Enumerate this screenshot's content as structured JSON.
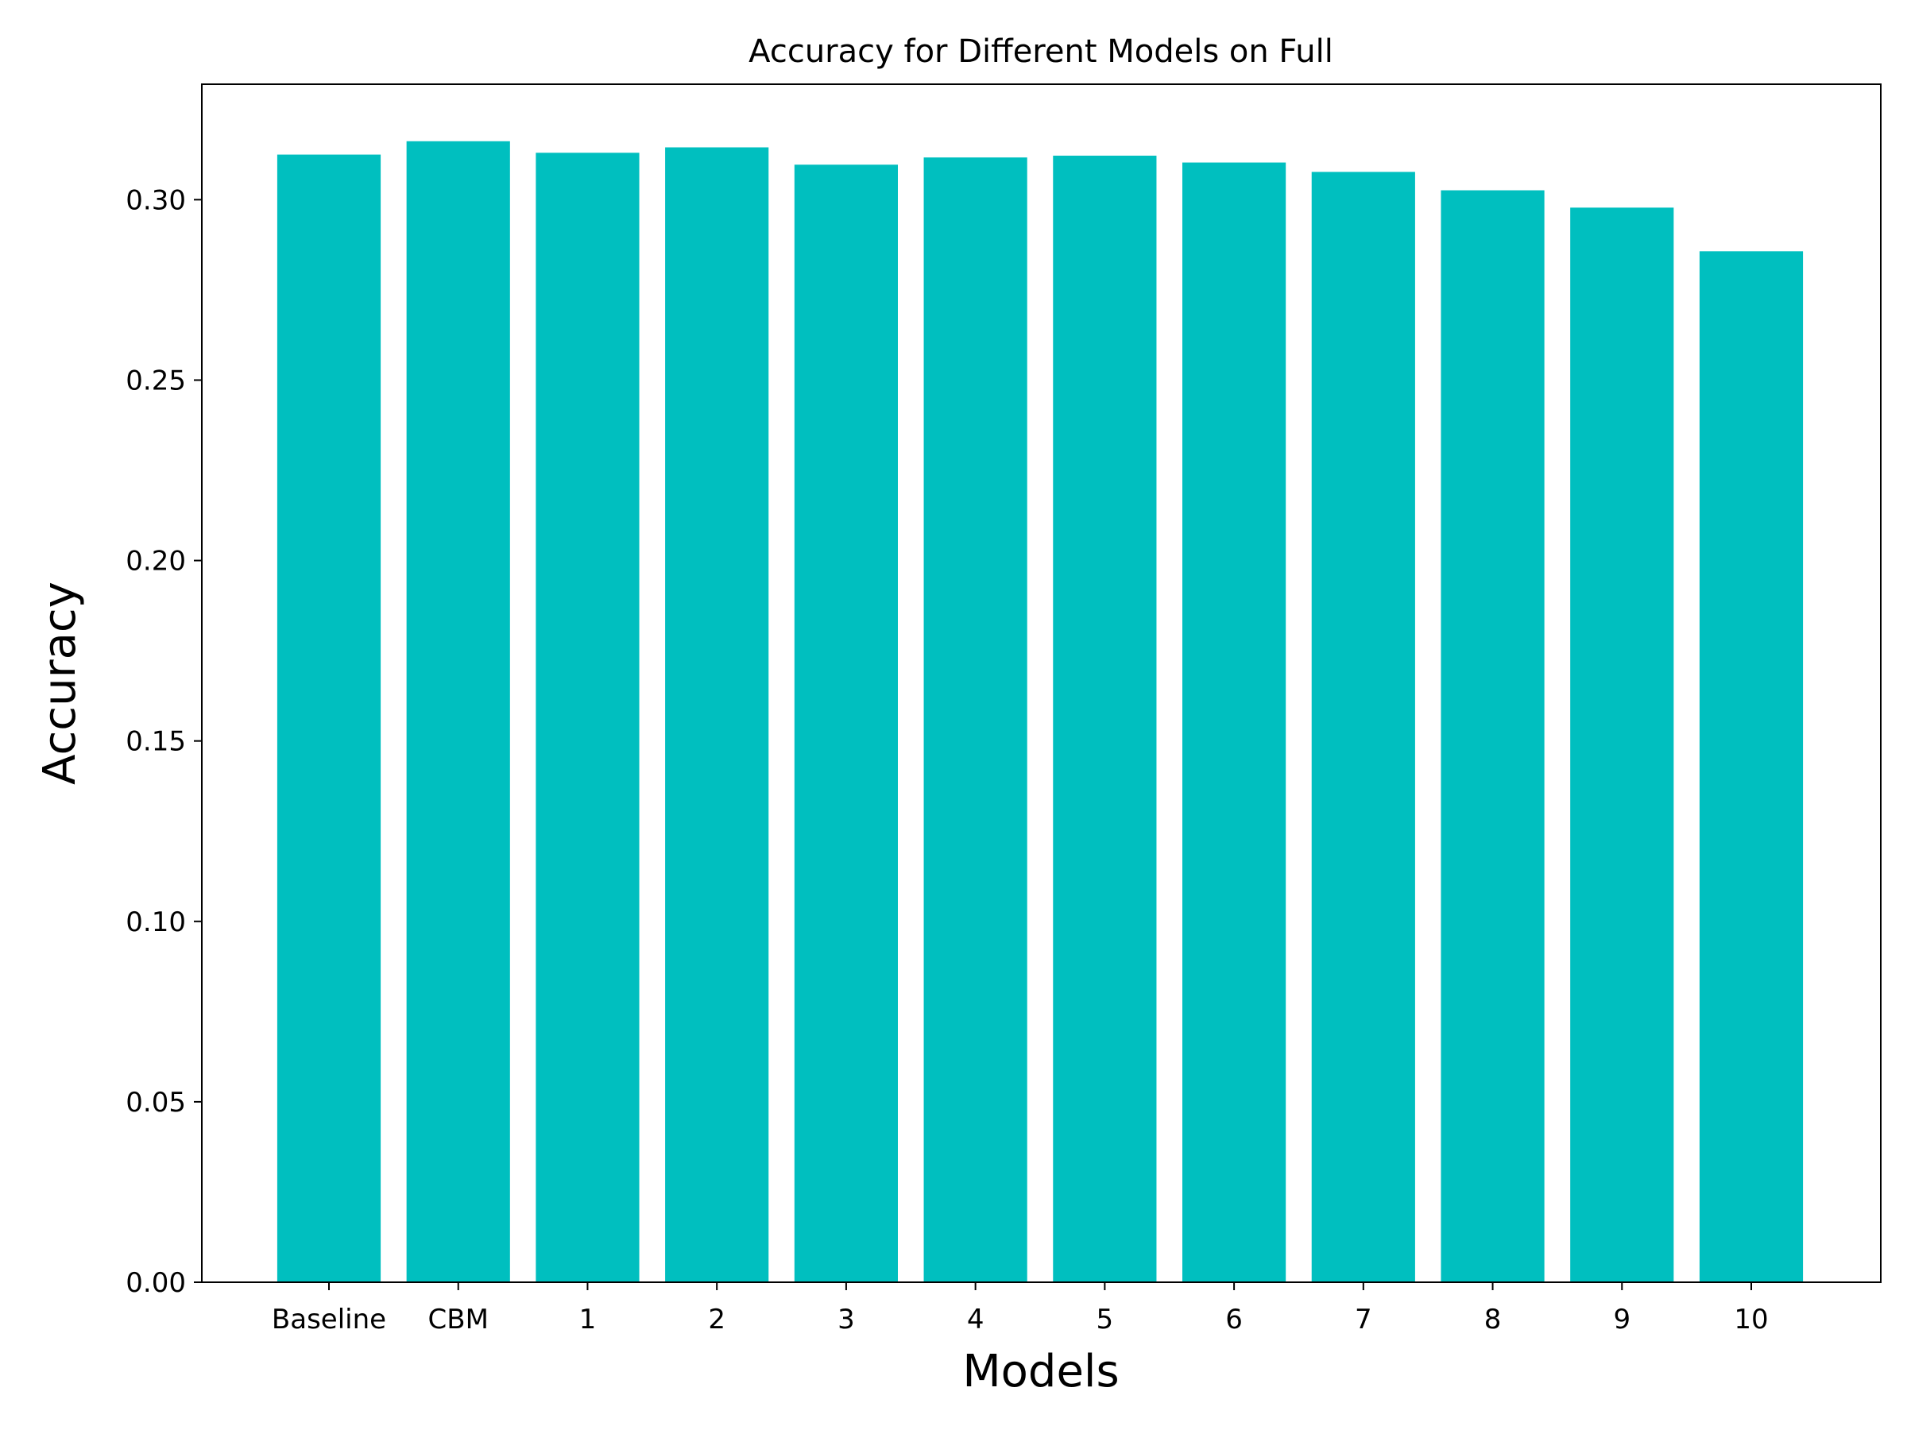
{
  "chart_data": {
    "type": "bar",
    "title": "Accuracy for Different Models on Full",
    "xlabel": "Models",
    "ylabel": "Accuracy",
    "categories": [
      "Baseline",
      "CBM",
      "1",
      "2",
      "3",
      "4",
      "5",
      "6",
      "7",
      "8",
      "9",
      "10"
    ],
    "values": [
      0.3125,
      0.3162,
      0.313,
      0.3145,
      0.3097,
      0.3117,
      0.3122,
      0.3103,
      0.3077,
      0.3026,
      0.2978,
      0.2857
    ],
    "ylim": [
      0,
      0.332
    ],
    "yticks": [
      0.0,
      0.05,
      0.1,
      0.15,
      0.2,
      0.25,
      0.3
    ],
    "ytick_labels": [
      "0.00",
      "0.05",
      "0.10",
      "0.15",
      "0.20",
      "0.25",
      "0.30"
    ],
    "bar_color": "#00bfbf",
    "grid": false,
    "legend": "none"
  }
}
